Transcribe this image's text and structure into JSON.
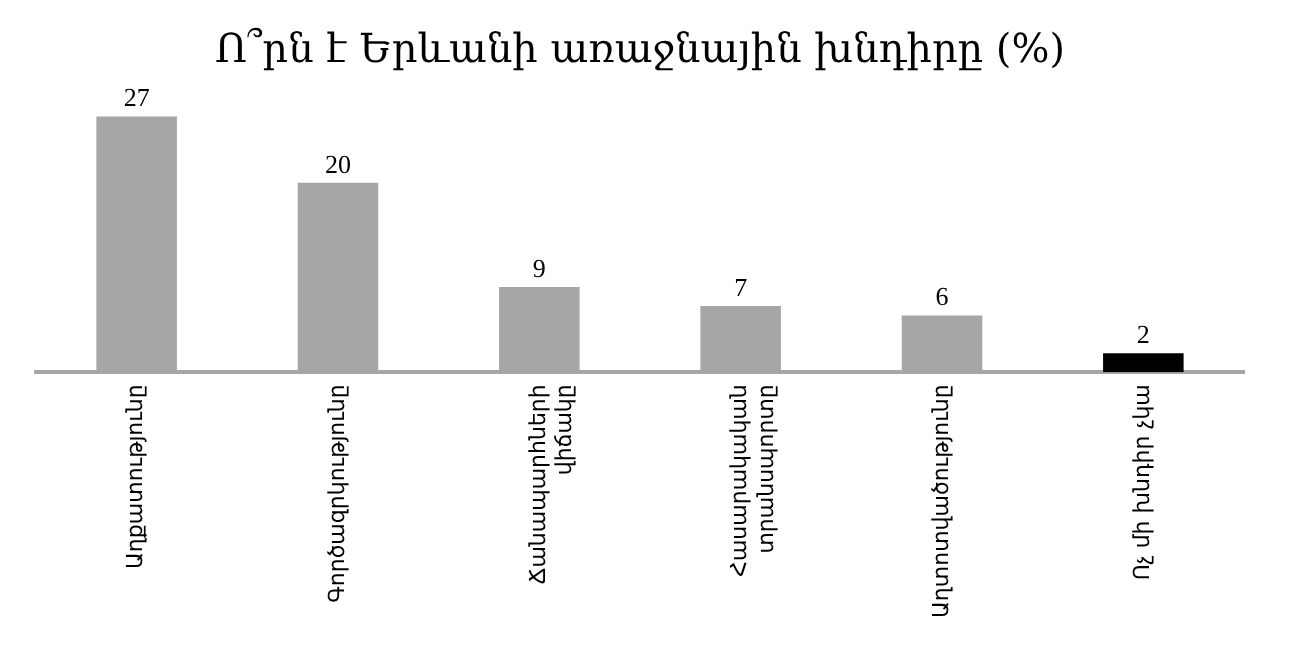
{
  "chart_data": {
    "type": "bar",
    "title": "Ո՞րն է Երևանի առաջնային խնդիրը (%)",
    "categories": [
      "Աղքատությունը",
      "Գործազրկությունը",
      "Ճանապարհների վիճակը",
      "Հասարակական տրանսպորտը",
      "Աղտոտվածությունը",
      "Ոչ մի խնդիր չկա"
    ],
    "values": [
      27,
      20,
      9,
      7,
      6,
      2
    ],
    "colors": [
      "#a6a6a6",
      "#a6a6a6",
      "#a6a6a6",
      "#a6a6a6",
      "#a6a6a6",
      "#000000"
    ],
    "data_labels": true,
    "tick_labels": "x",
    "grid": false,
    "legend": false
  }
}
